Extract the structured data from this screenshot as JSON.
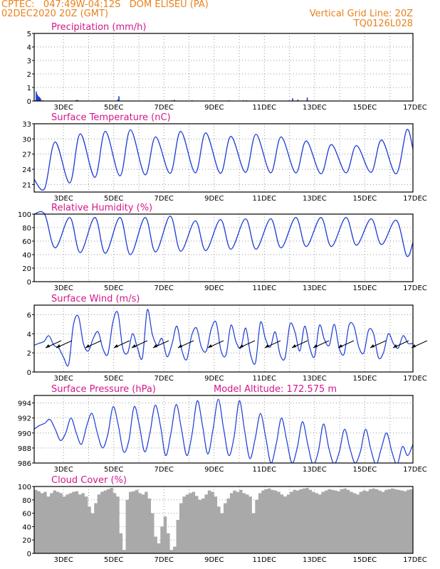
{
  "header": {
    "line1_left": "CPTEC:   047:49W-04:12S   DOM ELISEU (PA)",
    "line2_left": "02DEC2020 20Z (GMT)",
    "line1_right": "Vertical Grid Line: 20Z",
    "line2_right": "TQ0126L028"
  },
  "colors": {
    "series": "#1a3ad6",
    "title": "#d4168a",
    "header": "#e8821e",
    "cloud": "#a9a9a9",
    "grid": "#9a9a9a"
  },
  "chart_data": [
    {
      "type": "bar",
      "title": "Precipitation (mm/h)",
      "ylim": [
        0,
        5
      ],
      "yticks": [
        0,
        1,
        2,
        3,
        4,
        5
      ],
      "xticks": [
        "3DEC",
        "5DEC",
        "7DEC",
        "9DEC",
        "11DEC",
        "13DEC",
        "15DEC",
        "17DEC"
      ],
      "x_hours": [
        1,
        2,
        3,
        4,
        5,
        6,
        7,
        8,
        9,
        10,
        40,
        41,
        42,
        80,
        81,
        132,
        134,
        151,
        179,
        186,
        200,
        203,
        244,
        247,
        252,
        261
      ],
      "values": [
        0.05,
        0.7,
        0.5,
        0.35,
        0.3,
        0.2,
        0.05,
        0.04,
        0.03,
        0.02,
        0.05,
        0.08,
        0.05,
        0.1,
        0.35,
        0.05,
        0.08,
        0.05,
        0.03,
        0.05,
        0.05,
        0.05,
        0.05,
        0.2,
        0.1,
        0.25
      ]
    },
    {
      "type": "line",
      "title": "Surface Temperature (nC)",
      "ylim": [
        19.5,
        33
      ],
      "yticks": [
        21,
        24,
        27,
        30,
        33
      ],
      "xticks": [
        "3DEC",
        "5DEC",
        "7DEC",
        "9DEC",
        "11DEC",
        "13DEC",
        "15DEC",
        "17DEC"
      ],
      "daily_min": [
        20.2,
        21.3,
        22.4,
        22.7,
        22.9,
        23.2,
        23.3,
        23.2,
        23.4,
        23.3,
        23.3,
        23.1,
        23.3,
        23.4,
        23.1
      ],
      "daily_max": [
        29.4,
        31.0,
        31.5,
        31.8,
        30.4,
        31.5,
        31.2,
        30.5,
        30.9,
        30.4,
        29.6,
        28.9,
        28.7,
        29.8,
        31.8
      ],
      "x_start_hours": 0,
      "x_end_hours": 360,
      "first_value": 22.0,
      "last_value": 28.0
    },
    {
      "type": "line",
      "title": "Relative Humidity (%)",
      "ylim": [
        0,
        100
      ],
      "yticks": [
        0,
        20,
        40,
        60,
        80,
        100
      ],
      "xticks": [
        "3DEC",
        "5DEC",
        "7DEC",
        "9DEC",
        "11DEC",
        "13DEC",
        "15DEC",
        "17DEC"
      ],
      "daily_max": [
        100,
        95,
        95,
        95,
        95,
        97,
        90,
        92,
        93,
        93,
        95,
        95,
        95,
        93,
        91
      ],
      "daily_min": [
        50,
        43,
        42,
        40,
        44,
        45,
        46,
        48,
        48,
        50,
        52,
        52,
        54,
        55,
        38
      ],
      "first_value": 100,
      "last_value": 58
    },
    {
      "type": "line",
      "title": "Surface Wind (m/s)",
      "ylim": [
        0,
        7
      ],
      "yticks": [
        0,
        2,
        4,
        6
      ],
      "xticks": [
        "3DEC",
        "5DEC",
        "7DEC",
        "9DEC",
        "11DEC",
        "13DEC",
        "15DEC",
        "17DEC"
      ],
      "speed": [
        2.8,
        3.0,
        3.2,
        3.8,
        2.8,
        2.5,
        1.5,
        0.8,
        5.0,
        5.8,
        3.0,
        2.2,
        3.5,
        4.2,
        2.4,
        1.9,
        5.2,
        6.2,
        2.5,
        2.0,
        4.0,
        2.5,
        1.5,
        6.5,
        4.0,
        2.8,
        3.5,
        1.6,
        2.9,
        4.8,
        2.3,
        1.3,
        3.8,
        4.6,
        2.6,
        2.2,
        4.5,
        5.2,
        2.2,
        1.8,
        4.9,
        3.2,
        2.5,
        4.6,
        1.8,
        1.0,
        5.2,
        3.5,
        2.6,
        4.2,
        1.8,
        1.5,
        5.0,
        4.2,
        2.2,
        4.8,
        2.6,
        1.6,
        4.9,
        3.4,
        2.8,
        5.0,
        2.5,
        1.9,
        4.9,
        4.8,
        2.6,
        2.0,
        4.4,
        4.0,
        1.5,
        2.0,
        4.0,
        3.0,
        2.5,
        3.8,
        3.0,
        3.0
      ]
    },
    {
      "type": "line",
      "title": "Surface Pressure (hPa)",
      "subtitle": "Model Altitude: 172.575 m",
      "ylim": [
        986,
        995
      ],
      "yticks": [
        986,
        988,
        990,
        992,
        994
      ],
      "xticks": [
        "3DEC",
        "5DEC",
        "7DEC",
        "9DEC",
        "11DEC",
        "13DEC",
        "15DEC",
        "17DEC"
      ],
      "values": [
        990.5,
        991.0,
        991.3,
        991.8,
        990.5,
        989.0,
        990.0,
        992.0,
        990.0,
        988.5,
        991.0,
        992.6,
        990.0,
        988.0,
        989.8,
        993.5,
        991.0,
        987.5,
        989.0,
        993.5,
        991.0,
        987.5,
        990.0,
        993.7,
        991.0,
        987.0,
        990.0,
        993.8,
        990.5,
        987.0,
        989.8,
        994.3,
        991.0,
        987.2,
        990.5,
        994.5,
        990.6,
        987.0,
        989.5,
        994.3,
        990.3,
        986.6,
        989.2,
        992.6,
        989.5,
        986.0,
        988.5,
        992.0,
        989.0,
        986.0,
        988.0,
        991.5,
        988.5,
        985.8,
        987.5,
        991.2,
        988.0,
        985.9,
        987.5,
        990.5,
        988.0,
        986.0,
        987.5,
        990.5,
        987.8,
        985.8,
        988.0,
        990.0,
        987.5,
        985.5,
        988.2,
        987.0,
        988.5
      ]
    },
    {
      "type": "area",
      "title": "Cloud Cover (%)",
      "ylim": [
        0,
        100
      ],
      "yticks": [
        0,
        20,
        40,
        60,
        80,
        100
      ],
      "xticks": [
        "3DEC",
        "5DEC",
        "7DEC",
        "9DEC",
        "11DEC",
        "13DEC",
        "15DEC",
        "17DEC"
      ],
      "values": [
        95,
        93,
        90,
        92,
        85,
        90,
        94,
        92,
        90,
        85,
        88,
        90,
        92,
        93,
        88,
        90,
        85,
        70,
        60,
        75,
        88,
        92,
        94,
        96,
        98,
        90,
        85,
        30,
        5,
        80,
        92,
        93,
        95,
        90,
        88,
        92,
        82,
        60,
        25,
        15,
        40,
        55,
        30,
        5,
        10,
        50,
        75,
        85,
        88,
        90,
        92,
        86,
        80,
        82,
        88,
        94,
        92,
        85,
        70,
        60,
        75,
        82,
        90,
        94,
        92,
        95,
        90,
        88,
        85,
        60,
        80,
        90,
        94,
        96,
        97,
        95,
        94,
        92,
        88,
        85,
        88,
        92,
        95,
        94,
        96,
        97,
        98,
        95,
        92,
        90,
        88,
        92,
        94,
        96,
        95,
        94,
        93,
        96,
        97,
        95,
        92,
        90,
        88,
        92,
        94,
        93,
        96,
        97,
        96,
        94,
        92,
        95,
        96,
        97,
        96,
        95,
        94,
        93,
        95,
        96
      ]
    }
  ]
}
